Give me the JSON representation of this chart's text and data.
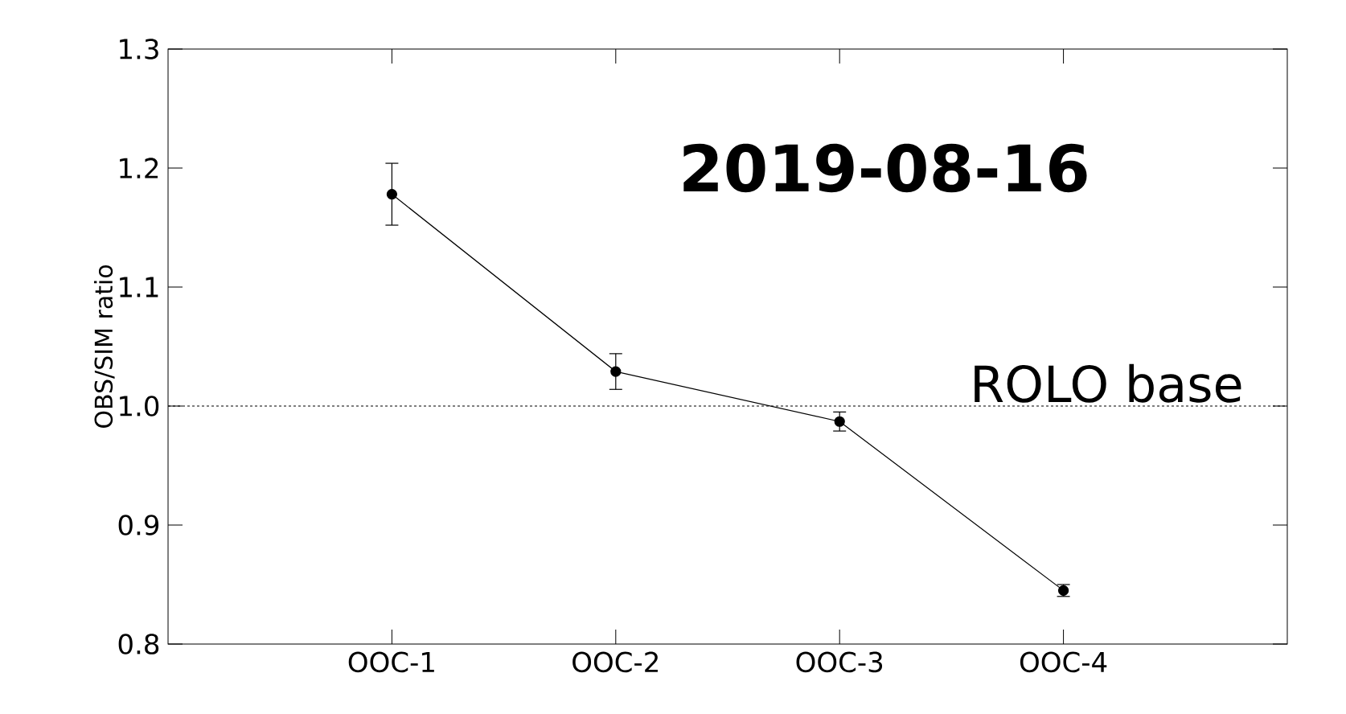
{
  "chart_data": {
    "type": "line",
    "ylabel": "OBS/SIM ratio",
    "categories": [
      "OOC-1",
      "OOC-2",
      "OOC-3",
      "OOC-4"
    ],
    "series": [
      {
        "color": "#000000",
        "values": [
          1.178,
          1.029,
          0.987,
          0.845
        ],
        "errors": [
          0.026,
          0.015,
          0.008,
          0.005
        ]
      }
    ],
    "ylim": [
      0.8,
      1.3
    ],
    "yticks": [
      {
        "value": 0.8,
        "label": "0.8"
      },
      {
        "value": 0.9,
        "label": "0.9"
      },
      {
        "value": 1.0,
        "label": "1.0"
      },
      {
        "value": 1.1,
        "label": "1.1"
      },
      {
        "value": 1.2,
        "label": "1.2"
      },
      {
        "value": 1.3,
        "label": "1.3"
      }
    ],
    "ref_lines": [
      {
        "axis": "y",
        "value": 1.0,
        "label": "ROLO base",
        "color": "#000000",
        "line_style": "dashed"
      }
    ],
    "annotations": [
      "2019-08-16"
    ],
    "grid": false,
    "marker": "circle",
    "line_style": "solid"
  }
}
